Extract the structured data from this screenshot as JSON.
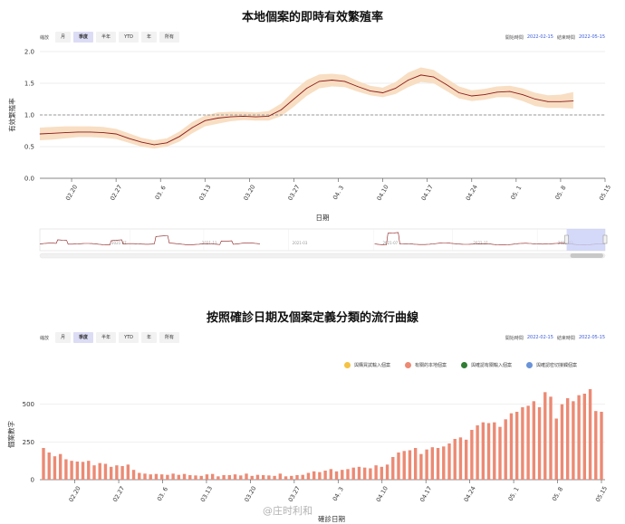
{
  "chart1": {
    "title": "本地個案的即時有效繁殖率",
    "zoom_label": "縮放",
    "zoom_buttons": [
      "月",
      "季度",
      "半年",
      "YTD",
      "年",
      "所有"
    ],
    "zoom_active": 1,
    "start_label": "開始時間",
    "start_value": "2022-02-15",
    "end_label": "結束時間",
    "end_value": "2022-05-15",
    "navigator_labels": [
      "2021-07",
      "2021-11",
      "2021-03",
      "2021-07",
      "2021-11",
      "2022-03"
    ]
  },
  "chart2": {
    "title": "按照確診日期及個案定義分類的流行曲線",
    "zoom_label": "縮放",
    "zoom_buttons": [
      "月",
      "季度",
      "半年",
      "YTD",
      "年",
      "所有"
    ],
    "zoom_active": 1,
    "start_label": "開始時間",
    "start_value": "2022-02-15",
    "end_label": "結束時間",
    "end_value": "2022-05-15",
    "legend": [
      {
        "label": "與購買試輸入個案",
        "color": "#f5c242"
      },
      {
        "label": "有關的本地個案",
        "color": "#ec8a74"
      },
      {
        "label": "與確認有關輸入個案",
        "color": "#2e7d32"
      },
      {
        "label": "與確認密切接觸個案",
        "color": "#6a93d8"
      }
    ]
  },
  "watermark": "@庄时利和",
  "chart_data": [
    {
      "type": "line",
      "title": "本地個案的即時有效繁殖率",
      "xlabel": "日期",
      "ylabel": "有效繁殖率",
      "ylim": [
        0,
        2.0
      ],
      "yticks": [
        0,
        0.5,
        1.0,
        1.5,
        2.0
      ],
      "xticks": [
        "02.20",
        "02.27",
        "03. 6",
        "03.13",
        "03.20",
        "03.27",
        "04. 3",
        "04.10",
        "04.17",
        "04.24",
        "05. 1",
        "05. 8",
        "05.15"
      ],
      "x_start": "02.15",
      "reference_line": 1.0,
      "grid": true,
      "series": [
        {
          "x": [
            "02.15",
            "02.17",
            "02.19",
            "02.21",
            "02.23",
            "02.25",
            "02.27",
            "03.01",
            "03.03",
            "03.05",
            "03.07",
            "03.09",
            "03.11",
            "03.13",
            "03.15",
            "03.17",
            "03.19",
            "03.21",
            "03.23",
            "03.25",
            "03.27",
            "03.29",
            "03.31",
            "04.02",
            "04.04",
            "04.06",
            "04.08",
            "04.10",
            "04.12",
            "04.14",
            "04.16",
            "04.18",
            "04.20",
            "04.22",
            "04.24",
            "04.26",
            "04.28",
            "04.30",
            "05.02",
            "05.04",
            "05.06",
            "05.08",
            "05.10"
          ],
          "values": [
            0.7,
            0.71,
            0.72,
            0.73,
            0.73,
            0.72,
            0.7,
            0.63,
            0.57,
            0.53,
            0.56,
            0.66,
            0.8,
            0.91,
            0.95,
            0.97,
            0.98,
            0.97,
            0.98,
            1.08,
            1.25,
            1.42,
            1.53,
            1.55,
            1.53,
            1.45,
            1.38,
            1.35,
            1.42,
            1.55,
            1.63,
            1.6,
            1.48,
            1.35,
            1.3,
            1.32,
            1.36,
            1.37,
            1.32,
            1.25,
            1.21,
            1.21,
            1.22
          ],
          "lower": [
            0.6,
            0.61,
            0.63,
            0.65,
            0.65,
            0.64,
            0.62,
            0.56,
            0.5,
            0.47,
            0.5,
            0.58,
            0.71,
            0.82,
            0.86,
            0.9,
            0.92,
            0.91,
            0.91,
            0.98,
            1.13,
            1.3,
            1.42,
            1.45,
            1.44,
            1.37,
            1.31,
            1.28,
            1.33,
            1.44,
            1.52,
            1.5,
            1.38,
            1.26,
            1.22,
            1.24,
            1.28,
            1.28,
            1.22,
            1.14,
            1.11,
            1.11,
            1.1
          ],
          "upper": [
            0.8,
            0.81,
            0.82,
            0.82,
            0.82,
            0.81,
            0.78,
            0.71,
            0.64,
            0.6,
            0.63,
            0.74,
            0.89,
            0.99,
            1.04,
            1.05,
            1.05,
            1.04,
            1.06,
            1.18,
            1.38,
            1.55,
            1.64,
            1.65,
            1.63,
            1.54,
            1.46,
            1.43,
            1.52,
            1.67,
            1.75,
            1.71,
            1.58,
            1.45,
            1.39,
            1.41,
            1.45,
            1.46,
            1.42,
            1.35,
            1.31,
            1.32,
            1.36
          ]
        }
      ]
    },
    {
      "type": "bar",
      "title": "按照確診日期及個案定義分類的流行曲線",
      "xlabel": "確診日期",
      "ylabel": "個案數字",
      "ylim": [
        0,
        600
      ],
      "yticks": [
        0,
        250,
        500
      ],
      "xticks": [
        "02.20",
        "02.27",
        "03. 6",
        "03.13",
        "03.20",
        "03.27",
        "04. 3",
        "04.10",
        "04.17",
        "04.24",
        "05. 1",
        "05. 8",
        "05.15"
      ],
      "x_start": "02.15",
      "grid": true,
      "series": [
        {
          "name": "有關的本地個案",
          "values": [
            210,
            180,
            155,
            170,
            135,
            125,
            120,
            118,
            125,
            95,
            110,
            105,
            85,
            95,
            90,
            100,
            65,
            45,
            40,
            35,
            38,
            35,
            32,
            40,
            32,
            38,
            30,
            28,
            25,
            35,
            38,
            22,
            30,
            30,
            35,
            28,
            40,
            25,
            32,
            30,
            28,
            25,
            40,
            22,
            25,
            30,
            32,
            45,
            55,
            50,
            60,
            70,
            55,
            65,
            70,
            80,
            85,
            80,
            75,
            95,
            85,
            100,
            150,
            180,
            190,
            195,
            210,
            170,
            200,
            215,
            210,
            220,
            240,
            270,
            280,
            265,
            330,
            360,
            380,
            375,
            380,
            350,
            400,
            440,
            450,
            480,
            490,
            520,
            480,
            580,
            550,
            405,
            500,
            540,
            520,
            560,
            570,
            600,
            455,
            450
          ],
          "label_note": ""
        }
      ]
    }
  ]
}
